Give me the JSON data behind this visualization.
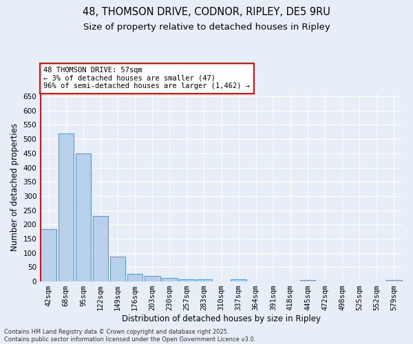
{
  "title1": "48, THOMSON DRIVE, CODNOR, RIPLEY, DE5 9RU",
  "title2": "Size of property relative to detached houses in Ripley",
  "xlabel": "Distribution of detached houses by size in Ripley",
  "ylabel": "Number of detached properties",
  "categories": [
    "42sqm",
    "68sqm",
    "95sqm",
    "122sqm",
    "149sqm",
    "176sqm",
    "203sqm",
    "230sqm",
    "257sqm",
    "283sqm",
    "310sqm",
    "337sqm",
    "364sqm",
    "391sqm",
    "418sqm",
    "445sqm",
    "472sqm",
    "498sqm",
    "525sqm",
    "552sqm",
    "579sqm"
  ],
  "values": [
    185,
    520,
    449,
    230,
    87,
    27,
    20,
    12,
    8,
    7,
    0,
    8,
    0,
    0,
    0,
    5,
    0,
    0,
    0,
    0,
    5
  ],
  "bar_color": "#b8d0ea",
  "bar_edge_color": "#5b9bd5",
  "background_color": "#e8eef8",
  "grid_color": "#ffffff",
  "annotation_text_line1": "48 THOMSON DRIVE: 57sqm",
  "annotation_text_line2": "← 3% of detached houses are smaller (47)",
  "annotation_text_line3": "96% of semi-detached houses are larger (1,462) →",
  "annotation_box_color": "white",
  "annotation_box_edge_color": "red",
  "vline_color": "red",
  "ylim": [
    0,
    660
  ],
  "yticks": [
    0,
    50,
    100,
    150,
    200,
    250,
    300,
    350,
    400,
    450,
    500,
    550,
    600,
    650
  ],
  "footer_text": "Contains HM Land Registry data © Crown copyright and database right 2025.\nContains public sector information licensed under the Open Government Licence v3.0.",
  "title_fontsize": 10.5,
  "subtitle_fontsize": 9.5,
  "axis_label_fontsize": 8.5,
  "tick_fontsize": 7.5,
  "annotation_fontsize": 7.5,
  "footer_fontsize": 6
}
